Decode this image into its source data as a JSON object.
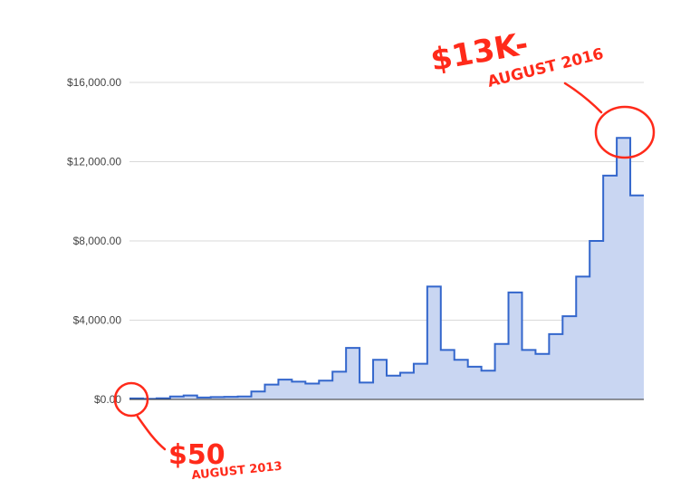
{
  "chart_data": {
    "type": "area",
    "step": true,
    "title": "",
    "xlabel": "",
    "ylabel": "",
    "ylim": [
      0,
      16000
    ],
    "yticks": [
      0,
      4000,
      8000,
      12000,
      16000
    ],
    "ytick_labels": [
      "$0.00",
      "$4,000.00",
      "$8,000.00",
      "$12,000.00",
      "$16,000.00"
    ],
    "grid": true,
    "legend": "none",
    "colors": {
      "line": "#3366cc",
      "fill": "#c9d6f2",
      "grid": "#d9d9d9",
      "annotation": "#ff2a1a"
    },
    "series": [
      {
        "values": [
          50,
          30,
          60,
          150,
          200,
          100,
          120,
          130,
          150,
          400,
          750,
          1000,
          900,
          800,
          950,
          1400,
          2600,
          850,
          2000,
          1200,
          1350,
          1800,
          5700,
          2500,
          2000,
          1650,
          1450,
          2800,
          5400,
          2500,
          2300,
          3300,
          4200,
          6200,
          8000,
          11300,
          13200,
          10300
        ]
      }
    ],
    "annotations": [
      {
        "text": "$50",
        "subtext": "AUGUST 2013"
      },
      {
        "text": "$13K-",
        "subtext": "AUGUST 2016"
      }
    ]
  }
}
